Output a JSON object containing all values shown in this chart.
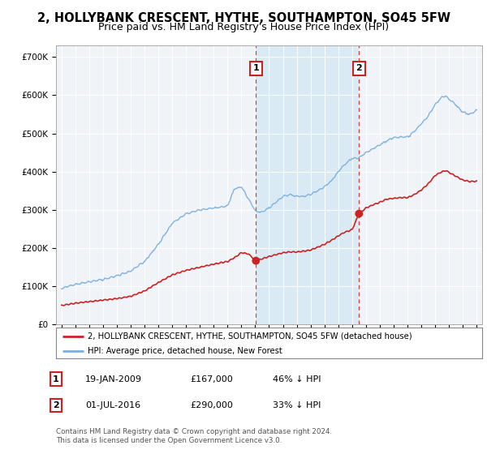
{
  "title": "2, HOLLYBANK CRESCENT, HYTHE, SOUTHAMPTON, SO45 5FW",
  "subtitle": "Price paid vs. HM Land Registry's House Price Index (HPI)",
  "ylabel_ticks": [
    "£0",
    "£100K",
    "£200K",
    "£300K",
    "£400K",
    "£500K",
    "£600K",
    "£700K"
  ],
  "ytick_vals": [
    0,
    100000,
    200000,
    300000,
    400000,
    500000,
    600000,
    700000
  ],
  "ylim": [
    0,
    730000
  ],
  "xlim_start": 1994.6,
  "xlim_end": 2025.4,
  "hpi_color": "#7aafdd",
  "hpi_fill_color": "#cce0f0",
  "price_color": "#cc2222",
  "marker_color": "#cc2222",
  "sale1_date": 2009.05,
  "sale1_price": 167000,
  "sale2_date": 2016.5,
  "sale2_price": 290000,
  "highlight_color": "#daeaf5",
  "legend_line1": "2, HOLLYBANK CRESCENT, HYTHE, SOUTHAMPTON, SO45 5FW (detached house)",
  "legend_line2": "HPI: Average price, detached house, New Forest",
  "table_row1": [
    "1",
    "19-JAN-2009",
    "£167,000",
    "46% ↓ HPI"
  ],
  "table_row2": [
    "2",
    "01-JUL-2016",
    "£290,000",
    "33% ↓ HPI"
  ],
  "footnote": "Contains HM Land Registry data © Crown copyright and database right 2024.\nThis data is licensed under the Open Government Licence v3.0."
}
